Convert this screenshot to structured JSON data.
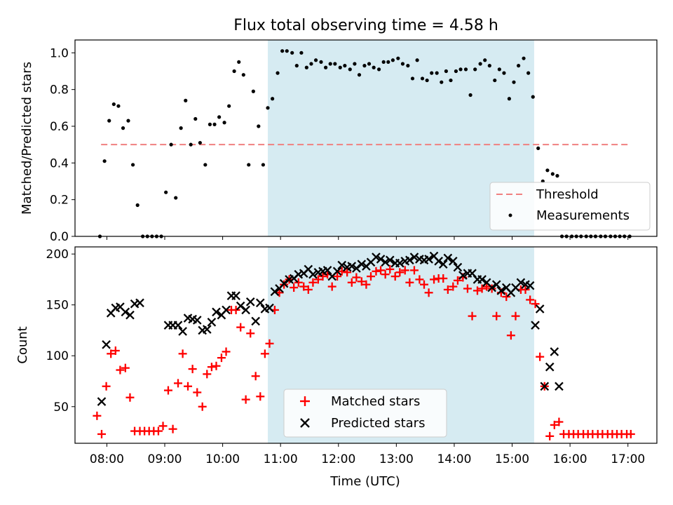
{
  "figure": {
    "title": "Flux total observing time = 4.58 h"
  },
  "chart_data": [
    {
      "type": "scatter",
      "ylabel": "Matched/Predicted stars",
      "xlim": [
        7.45,
        17.5
      ],
      "ylim": [
        0,
        1.07
      ],
      "yticks": [
        "0.0",
        "0.2",
        "0.4",
        "0.6",
        "0.8",
        "1.0"
      ],
      "ytick_values": [
        0,
        0.2,
        0.4,
        0.6,
        0.8,
        1.0
      ],
      "shaded_region": [
        10.78,
        15.38
      ],
      "shaded_color": "#add8e6",
      "threshold": {
        "name": "Threshold",
        "value": 0.5,
        "x": [
          7.9,
          17.05
        ],
        "color": "#f08080"
      },
      "series": [
        {
          "name": "Measurements",
          "color": "#000000",
          "x": [
            7.88,
            7.96,
            8.04,
            8.12,
            8.2,
            8.28,
            8.37,
            8.45,
            8.53,
            8.62,
            8.7,
            8.78,
            8.86,
            8.94,
            9.02,
            9.11,
            9.19,
            9.28,
            9.36,
            9.45,
            9.53,
            9.61,
            9.7,
            9.78,
            9.86,
            9.94,
            10.03,
            10.11,
            10.2,
            10.28,
            10.36,
            10.45,
            10.53,
            10.62,
            10.7,
            10.78,
            10.86,
            10.95,
            11.03,
            11.11,
            11.2,
            11.28,
            11.36,
            11.45,
            11.53,
            11.61,
            11.7,
            11.78,
            11.86,
            11.94,
            12.03,
            12.11,
            12.2,
            12.28,
            12.36,
            12.45,
            12.53,
            12.61,
            12.7,
            12.78,
            12.86,
            12.94,
            13.03,
            13.11,
            13.2,
            13.28,
            13.36,
            13.45,
            13.53,
            13.61,
            13.7,
            13.78,
            13.86,
            13.94,
            14.03,
            14.11,
            14.2,
            14.28,
            14.36,
            14.45,
            14.53,
            14.61,
            14.7,
            14.78,
            14.86,
            14.95,
            15.03,
            15.11,
            15.2,
            15.28,
            15.36,
            15.45,
            15.53,
            15.61,
            15.7,
            15.78,
            15.86,
            15.94,
            16.03,
            16.11,
            16.19,
            16.28,
            16.36,
            16.44,
            16.53,
            16.61,
            16.7,
            16.78,
            16.86,
            16.94,
            17.03
          ],
          "y": [
            0,
            0.41,
            0.63,
            0.72,
            0.71,
            0.59,
            0.63,
            0.39,
            0.17,
            0,
            0,
            0,
            0,
            0,
            0.24,
            0.5,
            0.21,
            0.59,
            0.74,
            0.5,
            0.64,
            0.51,
            0.39,
            0.61,
            0.61,
            0.65,
            0.62,
            0.71,
            0.9,
            0.95,
            0.88,
            0.39,
            0.79,
            0.6,
            0.39,
            0.7,
            0.75,
            0.89,
            1.01,
            1.01,
            1.0,
            0.93,
            1.0,
            0.92,
            0.94,
            0.96,
            0.95,
            0.92,
            0.94,
            0.94,
            0.92,
            0.93,
            0.91,
            0.94,
            0.88,
            0.93,
            0.94,
            0.92,
            0.91,
            0.95,
            0.95,
            0.96,
            0.97,
            0.94,
            0.93,
            0.86,
            0.96,
            0.86,
            0.85,
            0.89,
            0.89,
            0.84,
            0.9,
            0.85,
            0.9,
            0.91,
            0.91,
            0.77,
            0.91,
            0.94,
            0.96,
            0.93,
            0.85,
            0.91,
            0.89,
            0.75,
            0.84,
            0.93,
            0.97,
            0.89,
            0.76,
            0.48,
            0.3,
            0.36,
            0.34,
            0.33,
            0,
            0,
            0,
            0,
            0,
            0,
            0,
            0,
            0,
            0,
            0,
            0,
            0,
            0,
            0
          ]
        }
      ],
      "legend": {
        "position": "lower right",
        "entries": [
          "Threshold",
          "Measurements"
        ]
      }
    },
    {
      "type": "scatter",
      "xlabel": "Time (UTC)",
      "ylabel": "Count",
      "xlim": [
        7.45,
        17.5
      ],
      "ylim": [
        14,
        207
      ],
      "xticks": [
        "08:00",
        "09:00",
        "10:00",
        "11:00",
        "12:00",
        "13:00",
        "14:00",
        "15:00",
        "16:00",
        "17:00"
      ],
      "xtick_values": [
        8,
        9,
        10,
        11,
        12,
        13,
        14,
        15,
        16,
        17
      ],
      "yticks": [
        "50",
        "100",
        "150",
        "200"
      ],
      "ytick_values": [
        50,
        100,
        150,
        200
      ],
      "shaded_region": [
        10.78,
        15.38
      ],
      "shaded_color": "#add8e6",
      "series": [
        {
          "name": "Matched stars",
          "marker": "+",
          "color": "#ff0000",
          "x": [
            7.83,
            7.91,
            7.99,
            8.07,
            8.15,
            8.23,
            8.32,
            8.4,
            8.48,
            8.57,
            8.65,
            8.73,
            8.81,
            8.89,
            8.97,
            9.06,
            9.14,
            9.23,
            9.31,
            9.4,
            9.48,
            9.56,
            9.65,
            9.73,
            9.81,
            9.89,
            9.98,
            10.06,
            10.15,
            10.23,
            10.31,
            10.4,
            10.48,
            10.57,
            10.65,
            10.73,
            10.81,
            10.9,
            10.98,
            11.06,
            11.15,
            11.23,
            11.31,
            11.4,
            11.48,
            11.56,
            11.65,
            11.73,
            11.81,
            11.89,
            11.98,
            12.06,
            12.15,
            12.23,
            12.31,
            12.4,
            12.48,
            12.56,
            12.65,
            12.73,
            12.81,
            12.89,
            12.98,
            13.06,
            13.15,
            13.23,
            13.31,
            13.4,
            13.48,
            13.56,
            13.65,
            13.73,
            13.81,
            13.89,
            13.98,
            14.06,
            14.15,
            14.23,
            14.31,
            14.4,
            14.48,
            14.56,
            14.65,
            14.73,
            14.81,
            14.9,
            14.98,
            15.06,
            15.15,
            15.23,
            15.31,
            15.4,
            15.48,
            15.56,
            15.65,
            15.73,
            15.81,
            15.89,
            15.98,
            16.06,
            16.14,
            16.23,
            16.31,
            16.39,
            16.48,
            16.56,
            16.65,
            16.73,
            16.81,
            16.89,
            16.98,
            17.05
          ],
          "y": [
            41,
            23,
            70,
            102,
            105,
            86,
            88,
            59,
            26,
            26,
            26,
            26,
            26,
            26,
            31,
            66,
            28,
            73,
            102,
            70,
            87,
            64,
            50,
            82,
            89,
            90,
            98,
            104,
            145,
            145,
            128,
            57,
            122,
            80,
            60,
            102,
            112,
            145,
            162,
            170,
            175,
            167,
            172,
            168,
            165,
            172,
            175,
            178,
            180,
            168,
            178,
            183,
            182,
            172,
            177,
            173,
            170,
            178,
            183,
            184,
            180,
            185,
            178,
            182,
            184,
            172,
            184,
            175,
            170,
            162,
            175,
            176,
            176,
            165,
            168,
            174,
            177,
            166,
            139,
            164,
            166,
            168,
            166,
            139,
            162,
            158,
            120,
            139,
            165,
            165,
            155,
            151,
            99,
            70,
            21,
            32,
            35,
            23,
            23,
            23,
            23,
            23,
            23,
            23,
            23,
            23,
            23,
            23,
            23,
            23,
            23,
            23
          ]
        },
        {
          "name": "Predicted stars",
          "marker": "x",
          "color": "#000000",
          "x": [
            7.91,
            7.99,
            8.07,
            8.15,
            8.23,
            8.32,
            8.4,
            8.48,
            8.57,
            9.06,
            9.14,
            9.23,
            9.31,
            9.4,
            9.48,
            9.56,
            9.65,
            9.73,
            9.81,
            9.89,
            9.98,
            10.06,
            10.15,
            10.23,
            10.31,
            10.4,
            10.48,
            10.57,
            10.65,
            10.73,
            10.81,
            10.9,
            10.98,
            11.06,
            11.15,
            11.23,
            11.31,
            11.4,
            11.48,
            11.56,
            11.65,
            11.73,
            11.81,
            11.89,
            11.98,
            12.06,
            12.15,
            12.23,
            12.31,
            12.4,
            12.48,
            12.56,
            12.65,
            12.73,
            12.81,
            12.89,
            12.98,
            13.06,
            13.15,
            13.23,
            13.31,
            13.4,
            13.48,
            13.56,
            13.65,
            13.73,
            13.81,
            13.89,
            13.98,
            14.06,
            14.15,
            14.23,
            14.31,
            14.4,
            14.48,
            14.56,
            14.65,
            14.73,
            14.81,
            14.9,
            14.98,
            15.06,
            15.15,
            15.23,
            15.31,
            15.4,
            15.48,
            15.56,
            15.65,
            15.73,
            15.81
          ],
          "y": [
            55,
            111,
            142,
            147,
            148,
            143,
            140,
            151,
            152,
            130,
            130,
            130,
            124,
            137,
            136,
            135,
            125,
            126,
            133,
            143,
            140,
            145,
            159,
            159,
            149,
            145,
            153,
            134,
            152,
            146,
            147,
            163,
            166,
            171,
            175,
            176,
            180,
            181,
            185,
            180,
            182,
            183,
            184,
            178,
            183,
            189,
            187,
            188,
            186,
            190,
            188,
            192,
            197,
            195,
            192,
            194,
            191,
            191,
            193,
            194,
            197,
            195,
            194,
            195,
            198,
            193,
            190,
            196,
            193,
            187,
            179,
            181,
            181,
            175,
            175,
            172,
            167,
            170,
            164,
            167,
            162,
            167,
            172,
            170,
            169,
            130,
            146,
            70,
            89,
            104,
            70
          ]
        }
      ],
      "legend": {
        "position": "lower center",
        "entries": [
          "Matched stars",
          "Predicted stars"
        ]
      }
    }
  ]
}
